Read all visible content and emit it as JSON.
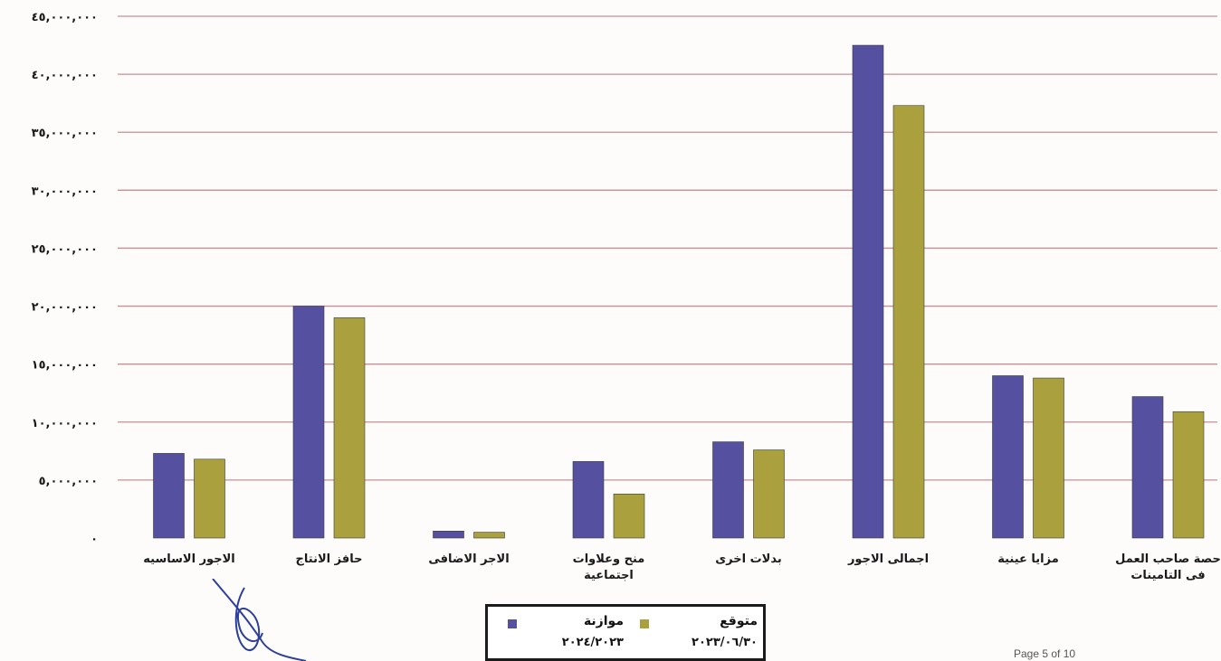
{
  "chart_data": {
    "type": "bar",
    "categories": [
      "الاجور الاساسيه",
      "حافز الانتاج",
      "الاجر الاضافى",
      "منح وعلاوات اجتماعية",
      "بدلات اخرى",
      "اجمالى الاجور",
      "مزايا عينية",
      "حصة صاحب العمل فى التامينات"
    ],
    "series": [
      {
        "name": "موازنة ٢٠٢٤/٢٠٢٣",
        "color": "#5550a0",
        "values": [
          7300000,
          20000000,
          600000,
          6600000,
          8300000,
          42500000,
          14000000,
          12200000
        ]
      },
      {
        "name": "متوقع ٢٠٢٣/٠٦/٣٠",
        "color": "#aaa13e",
        "values": [
          6800000,
          19000000,
          500000,
          3800000,
          7600000,
          37300000,
          13800000,
          10900000
        ]
      }
    ],
    "yticks": [
      0,
      5000000,
      10000000,
      15000000,
      20000000,
      25000000,
      30000000,
      35000000,
      40000000,
      45000000
    ],
    "ytick_labels": [
      "٠",
      "٥,٠٠٠,٠٠٠",
      "١٠,٠٠٠,٠٠٠",
      "١٥,٠٠٠,٠٠٠",
      "٢٠,٠٠٠,٠٠٠",
      "٢٥,٠٠٠,٠٠٠",
      "٣٠,٠٠٠,٠٠٠",
      "٣٥,٠٠٠,٠٠٠",
      "٤٠,٠٠٠,٠٠٠",
      "٤٥,٠٠٠,٠٠٠"
    ],
    "ylim": [
      0,
      45000000
    ],
    "grid": true,
    "legend_position": "bottom-center",
    "title": "",
    "xlabel": "",
    "ylabel": ""
  },
  "legend": {
    "series_a_name": "موازنة",
    "series_a_period": "٢٠٢٤/٢٠٢٣",
    "series_b_name": "متوقع",
    "series_b_period": "٢٠٢٣/٠٦/٣٠"
  },
  "colors": {
    "gridline": "#c88e93",
    "axis_text": "#1a1a1a",
    "background": "#fdfcfb"
  },
  "footer": {
    "page_text": "Page 5 of 10"
  }
}
